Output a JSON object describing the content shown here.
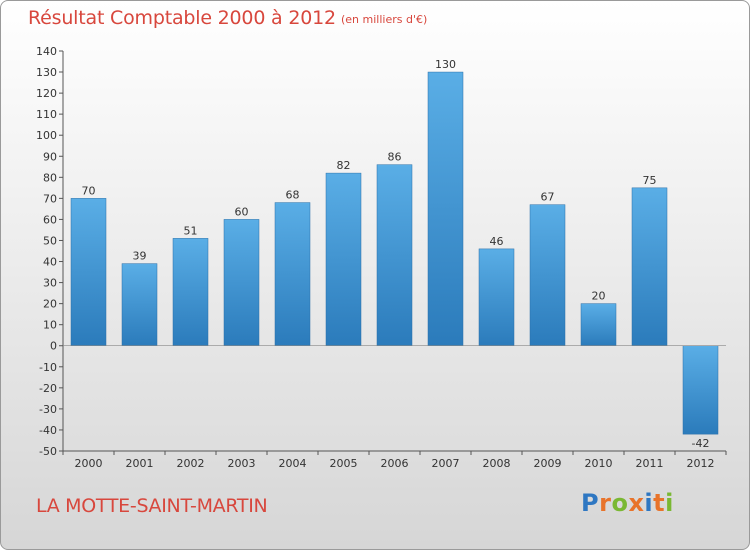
{
  "chart_data": {
    "type": "bar",
    "title": "Résultat Comptable 2000 à 2012",
    "unit": "(en milliers d'€)",
    "categories": [
      "2000",
      "2001",
      "2002",
      "2003",
      "2004",
      "2005",
      "2006",
      "2007",
      "2008",
      "2009",
      "2010",
      "2011",
      "2012"
    ],
    "values": [
      70,
      39,
      51,
      60,
      68,
      82,
      86,
      130,
      46,
      67,
      20,
      75,
      -42
    ],
    "ylim": [
      -50,
      140
    ],
    "yticks": [
      140,
      130,
      120,
      110,
      100,
      90,
      80,
      70,
      60,
      50,
      40,
      30,
      20,
      10,
      0,
      -10,
      -20,
      -30,
      -40,
      -50
    ],
    "grid": false,
    "bar_color_top": "#5aaee6",
    "bar_color_bottom": "#2b7bbb"
  },
  "commune": "LA MOTTE-SAINT-MARTIN",
  "logo": {
    "text": "Proxiti",
    "letters": [
      "P",
      "r",
      "o",
      "x",
      "i",
      "t",
      "i"
    ],
    "colors": [
      "#2e77c2",
      "#e8732a",
      "#7ab833",
      "#e8732a",
      "#2e77c2",
      "#e8732a",
      "#7ab833"
    ]
  }
}
